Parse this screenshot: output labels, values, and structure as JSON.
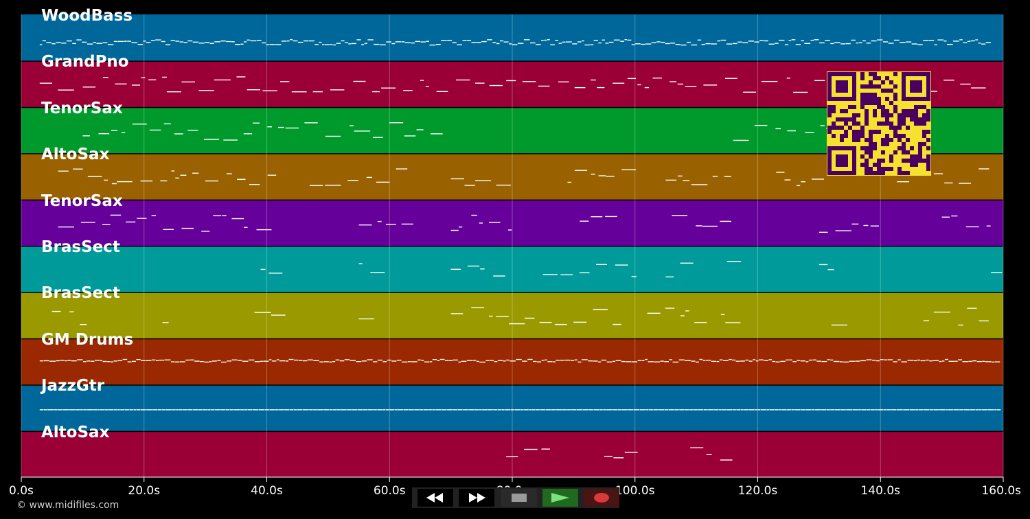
{
  "tracks": [
    {
      "name": "WoodBass",
      "color": "#00679a"
    },
    {
      "name": "GrandPno",
      "color": "#9a0036"
    },
    {
      "name": "TenorSax",
      "color": "#009a2c"
    },
    {
      "name": "AltoSax",
      "color": "#9a6100"
    },
    {
      "name": "TenorSax",
      "color": "#66009a"
    },
    {
      "name": "BrasSect",
      "color": "#009a9a"
    },
    {
      "name": "BrasSect",
      "color": "#9a9a00"
    },
    {
      "name": "GM Drums",
      "color": "#9a2800"
    },
    {
      "name": "JazzGtr",
      "color": "#00679a"
    },
    {
      "name": "AltoSax",
      "color": "#9a0036"
    }
  ],
  "timeline": {
    "max_seconds": 160,
    "ticks": [
      "0.0s",
      "20.0s",
      "40.0s",
      "60.0s",
      "80.0s",
      "100.0s",
      "120.0s",
      "140.0s",
      "160.0s"
    ]
  },
  "copyright": "© www.midifiles.com",
  "transport": {
    "rewind": "rewind-icon",
    "fast_forward": "fast-forward-icon",
    "stop": "stop-icon",
    "play": "play-icon",
    "record": "record-icon"
  },
  "qr_code": {
    "foreground": "#4a0060",
    "background": "#f5e12e"
  }
}
